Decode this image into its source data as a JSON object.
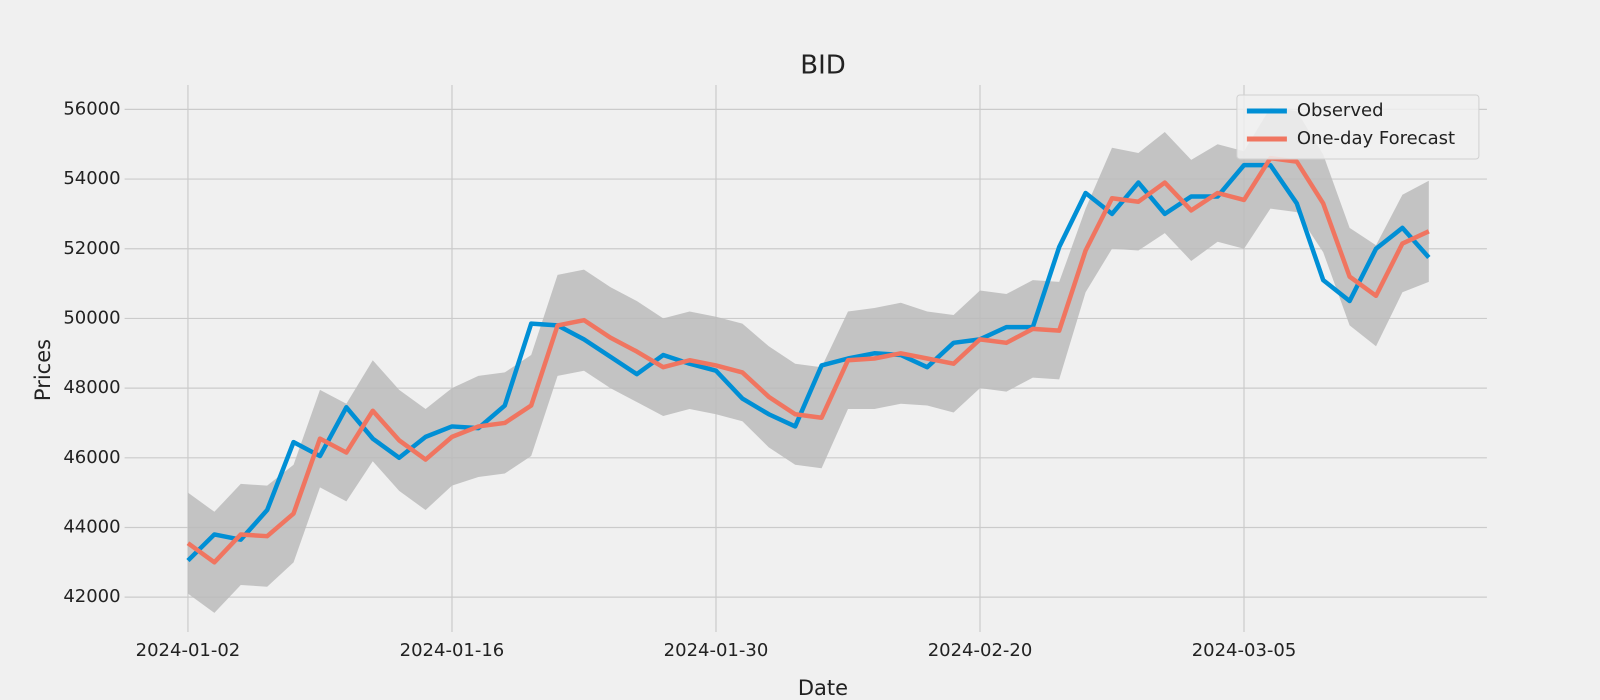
{
  "chart_data": {
    "type": "line",
    "title": "BID",
    "xlabel": "Date",
    "ylabel": "Prices",
    "x": [
      0,
      1,
      2,
      3,
      4,
      5,
      6,
      7,
      8,
      9,
      10,
      11,
      12,
      13,
      14,
      15,
      16,
      17,
      18,
      19,
      20,
      21,
      22,
      23,
      24,
      25,
      26,
      27,
      28,
      29,
      30,
      31,
      32,
      33,
      34,
      35,
      36,
      37,
      38,
      39,
      40,
      41,
      42,
      43,
      44,
      45,
      46,
      47
    ],
    "xlim": [
      -2.4,
      49.2
    ],
    "xticks": [
      {
        "value": 0,
        "label": "2024-01-02"
      },
      {
        "value": 10,
        "label": "2024-01-16"
      },
      {
        "value": 20,
        "label": "2024-01-30"
      },
      {
        "value": 30,
        "label": "2024-02-20"
      },
      {
        "value": 40,
        "label": "2024-03-05"
      }
    ],
    "ylim": [
      41000,
      56700
    ],
    "yticks": [
      42000,
      44000,
      46000,
      48000,
      50000,
      52000,
      54000,
      56000
    ],
    "grid": true,
    "legend": "upper right",
    "series": [
      {
        "name": "Observed",
        "color": "#008fd5",
        "values": [
          43050,
          43800,
          43650,
          44500,
          46450,
          46050,
          47450,
          46550,
          46000,
          46600,
          46900,
          46850,
          47500,
          49850,
          49800,
          49400,
          48900,
          48400,
          48950,
          48700,
          48500,
          47700,
          47250,
          46900,
          48650,
          48850,
          49000,
          48950,
          48600,
          49300,
          49400,
          49750,
          49750,
          52050,
          53600,
          53000,
          53900,
          53000,
          53500,
          53500,
          54400,
          54400,
          53300,
          51100,
          50500,
          52000,
          52600,
          51750
        ]
      },
      {
        "name": "One-day Forecast",
        "color": "#f07560",
        "values": [
          43550,
          43000,
          43800,
          43750,
          44400,
          46550,
          46150,
          47350,
          46500,
          45950,
          46600,
          46900,
          47000,
          47500,
          49800,
          49950,
          49450,
          49050,
          48600,
          48800,
          48650,
          48450,
          47750,
          47250,
          47150,
          48800,
          48850,
          49000,
          48850,
          48700,
          49400,
          49300,
          49700,
          49650,
          51950,
          53450,
          53350,
          53900,
          53100,
          53600,
          53400,
          54600,
          54500,
          53300,
          51200,
          50650,
          52150,
          52500
        ]
      }
    ],
    "interval": {
      "color": "#bbbbbb",
      "upper": [
        45000,
        44450,
        45250,
        45200,
        45800,
        47950,
        47550,
        48800,
        47950,
        47400,
        48000,
        48350,
        48450,
        48950,
        51250,
        51400,
        50900,
        50500,
        50000,
        50200,
        50050,
        49850,
        49200,
        48700,
        48600,
        50200,
        50300,
        50450,
        50200,
        50100,
        50800,
        50700,
        51100,
        51050,
        53150,
        54900,
        54750,
        55350,
        54550,
        55000,
        54800,
        56050,
        55950,
        54700,
        52600,
        52100,
        53550,
        53950
      ],
      "lower": [
        42100,
        41550,
        42350,
        42300,
        43000,
        45150,
        44750,
        45900,
        45050,
        44500,
        45200,
        45450,
        45550,
        46050,
        48350,
        48500,
        48000,
        47600,
        47200,
        47400,
        47250,
        47050,
        46300,
        45800,
        45700,
        47400,
        47400,
        47550,
        47500,
        47300,
        48000,
        47900,
        48300,
        48250,
        50750,
        52000,
        51950,
        52450,
        51650,
        52200,
        52000,
        53150,
        53050,
        51900,
        49800,
        49200,
        50750,
        51050
      ]
    }
  }
}
